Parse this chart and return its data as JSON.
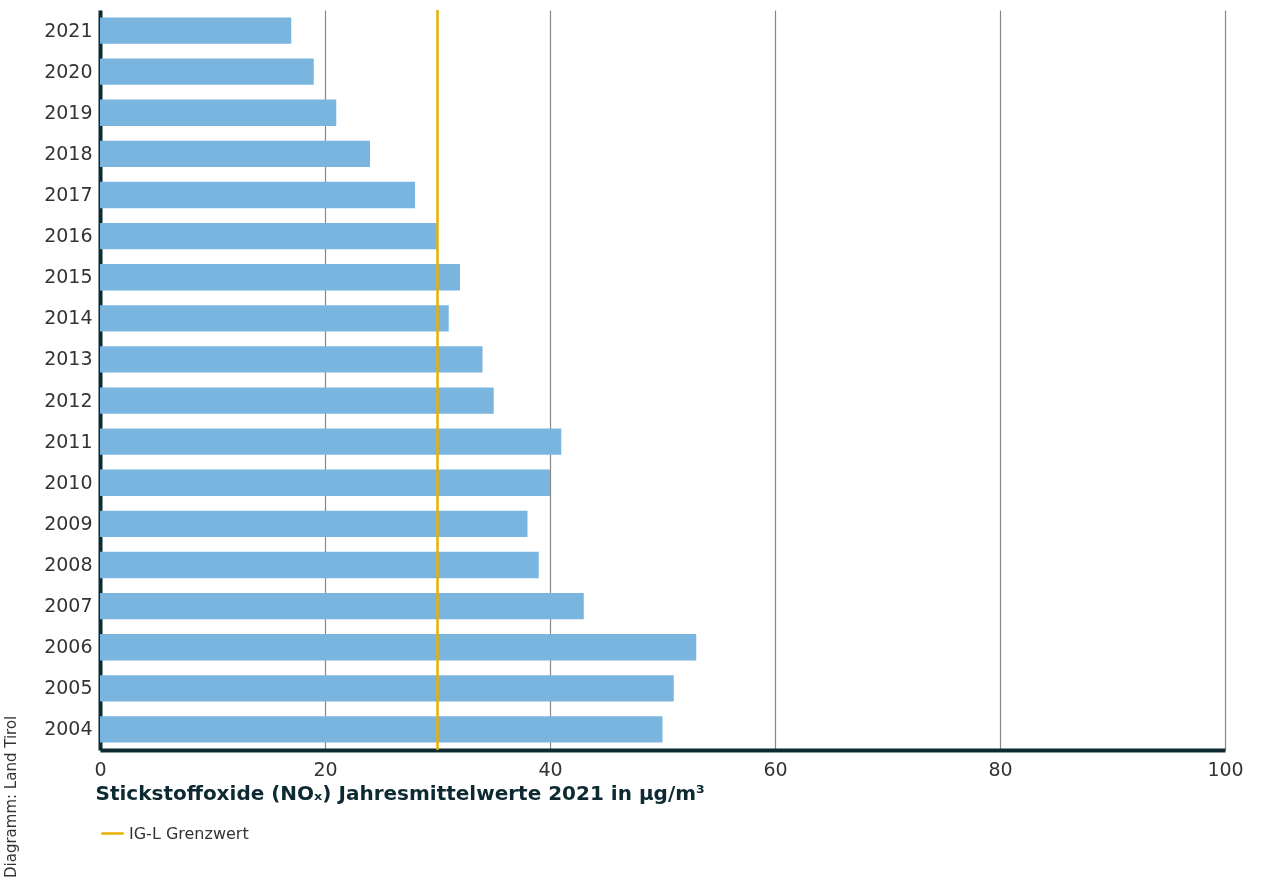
{
  "chart_data": {
    "type": "bar",
    "orientation": "horizontal",
    "xlabel": "Stickstoffoxide (NOₓ) Jahresmittelwerte 2021 in µg/m³",
    "categories": [
      "2021",
      "2020",
      "2019",
      "2018",
      "2017",
      "2016",
      "2015",
      "2014",
      "2013",
      "2012",
      "2011",
      "2010",
      "2009",
      "2008",
      "2007",
      "2006",
      "2005",
      "2004"
    ],
    "values": [
      17,
      19,
      21,
      24,
      28,
      30,
      32,
      31,
      34,
      35,
      41,
      40,
      38,
      39,
      43,
      53,
      51,
      50
    ],
    "color": "#7ab5e0",
    "xlim": [
      0,
      100
    ],
    "xticks": [
      0,
      20,
      40,
      60,
      80,
      100
    ],
    "grid": "x",
    "legend": "bottom",
    "ref_lines": [
      {
        "axis": "x",
        "value": 30,
        "label": "IG-L Grenzwert",
        "color": "#e8b100"
      }
    ],
    "annotations": [
      "Diagramm: Land Tirol"
    ]
  }
}
